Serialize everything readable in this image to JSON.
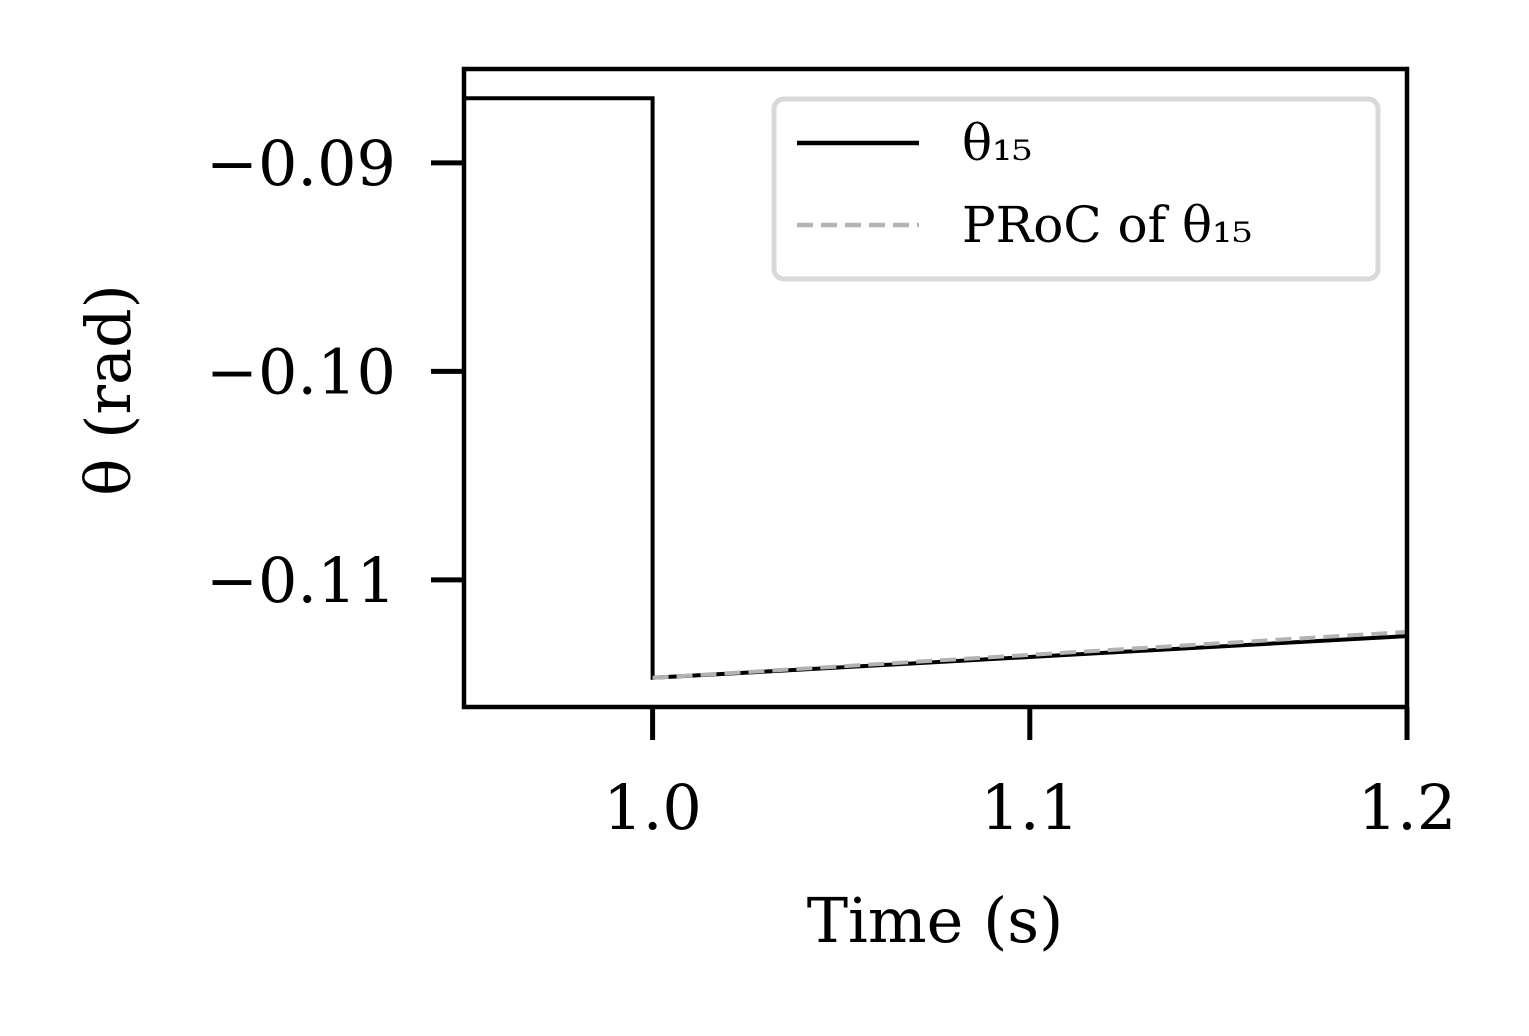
{
  "chart_data": {
    "type": "line",
    "title": "",
    "xlabel": "Time (s)",
    "ylabel": "θ (rad)",
    "xlim": [
      0.95,
      1.2
    ],
    "ylim": [
      -0.1161,
      -0.0855
    ],
    "xticks": [
      1.0,
      1.1,
      1.2
    ],
    "xtick_labels": [
      "1.0",
      "1.1",
      "1.2"
    ],
    "yticks": [
      -0.09,
      -0.1,
      -0.11
    ],
    "ytick_labels": [
      "−0.09",
      "−0.10",
      "−0.11"
    ],
    "grid": false,
    "legend_position": "top-right",
    "series": [
      {
        "name": "θ₁₅",
        "color": "#000000",
        "style": "solid",
        "x": [
          0.95,
          1.0,
          1.0,
          1.2
        ],
        "y": [
          -0.0869,
          -0.0869,
          -0.1147,
          -0.1127
        ]
      },
      {
        "name": "PRoC of θ₁₅",
        "color": "#b3b3b3",
        "style": "dashed",
        "x": [
          1.0,
          1.2
        ],
        "y": [
          -0.1147,
          -0.1125
        ]
      }
    ]
  }
}
